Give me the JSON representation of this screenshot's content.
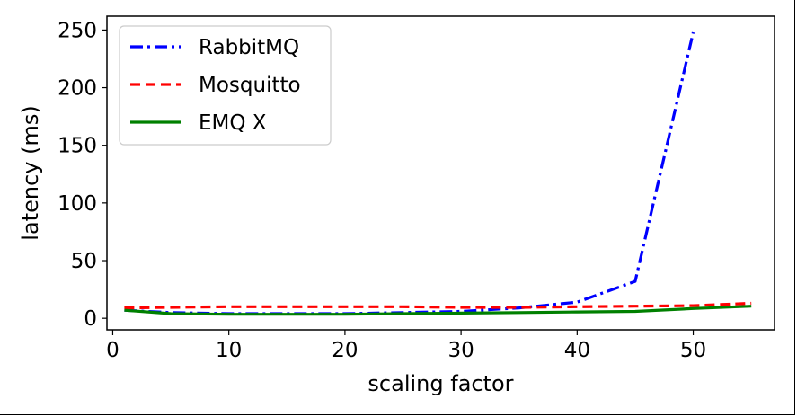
{
  "chart_data": {
    "type": "line",
    "title": "",
    "xlabel": "scaling factor",
    "ylabel": "latency (ms)",
    "xlim": [
      -0.5,
      57
    ],
    "ylim": [
      -10,
      262
    ],
    "xticks": [
      0,
      10,
      20,
      30,
      40,
      50
    ],
    "yticks": [
      0,
      50,
      100,
      150,
      200,
      250
    ],
    "grid": false,
    "legend": "top-left",
    "series": [
      {
        "name": "RabbitMQ",
        "color": "#0000ff",
        "dash": "dashdot",
        "x": [
          1,
          5,
          10,
          15,
          20,
          25,
          30,
          35,
          40,
          45,
          50
        ],
        "y": [
          7,
          5,
          4,
          4,
          4,
          5,
          6,
          9,
          14,
          32,
          248
        ]
      },
      {
        "name": "Mosquitto",
        "color": "#ff0000",
        "dash": "dashed",
        "x": [
          1,
          5,
          10,
          15,
          20,
          25,
          30,
          35,
          40,
          45,
          50,
          55
        ],
        "y": [
          9,
          9.5,
          10,
          10,
          10,
          10,
          9.5,
          9.5,
          10,
          10.5,
          11,
          13
        ]
      },
      {
        "name": "EMQ X",
        "color": "#008000",
        "dash": "solid",
        "x": [
          1,
          5,
          10,
          15,
          20,
          25,
          30,
          35,
          40,
          45,
          50,
          55
        ],
        "y": [
          7,
          4,
          3.5,
          3.5,
          3.5,
          4,
          4.5,
          5,
          5.5,
          6,
          8.5,
          10.5
        ]
      }
    ]
  }
}
